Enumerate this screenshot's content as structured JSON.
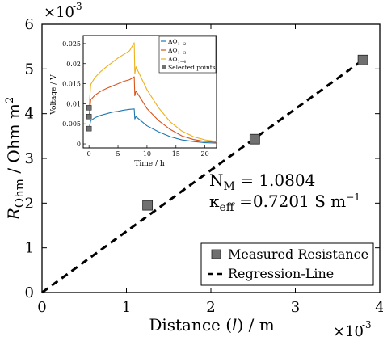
{
  "chart_data": [
    {
      "type": "scatter",
      "xlabel": "Distance (l) / m",
      "ylabel": "R_Ohm / Ohm m^2",
      "xlim": [
        0,
        0.004
      ],
      "ylim": [
        0,
        0.006
      ],
      "x_multiplier": "×10^-3",
      "y_multiplier": "×10^-3",
      "x_ticks": [
        "0",
        "1",
        "2",
        "3",
        "4"
      ],
      "y_ticks": [
        "0",
        "1",
        "2",
        "3",
        "4",
        "5",
        "6"
      ],
      "grid": false,
      "legend_position": "bottom-right",
      "series": [
        {
          "name": "Measured Resistance",
          "marker": "square",
          "color": "#707070",
          "points": [
            {
              "x": 0.00125,
              "y": 0.00195
            },
            {
              "x": 0.00252,
              "y": 0.00343
            },
            {
              "x": 0.0038,
              "y": 0.0052
            }
          ]
        },
        {
          "name": "Regression-Line",
          "style": "dashed",
          "color": "#000000",
          "points": [
            {
              "x": 0.0,
              "y": 0.0
            },
            {
              "x": 0.0038,
              "y": 0.0052
            }
          ]
        }
      ],
      "annotations": {
        "nm_text": "N_M = 1.0804",
        "kappa_text": "κ_eff =0.7201 S m^-1"
      }
    },
    {
      "type": "line",
      "xlabel": "Time / h",
      "ylabel": "Voltage / V",
      "xlim": [
        -1,
        22
      ],
      "ylim": [
        -0.001,
        0.027
      ],
      "x_ticks": [
        "0",
        "5",
        "10",
        "15",
        "20"
      ],
      "y_ticks": [
        "0",
        "0.005",
        "0.01",
        "0.015",
        "0.02",
        "0.025"
      ],
      "legend_position": "top-right",
      "series": [
        {
          "name": "ΔΦ_1-2",
          "color": "#1f77b4",
          "x": [
            0,
            0.3,
            1,
            2,
            3,
            4,
            5,
            6,
            7,
            7.8,
            7.9,
            8.1,
            10,
            12,
            14,
            16,
            18,
            20,
            22
          ],
          "y": [
            0.0038,
            0.0058,
            0.0065,
            0.0071,
            0.0075,
            0.0079,
            0.0081,
            0.0084,
            0.0086,
            0.0087,
            0.0062,
            0.0068,
            0.0045,
            0.003,
            0.0018,
            0.001,
            0.0006,
            0.0003,
            0.0002
          ]
        },
        {
          "name": "ΔΦ_1-3",
          "color": "#d95319",
          "x": [
            0,
            0.3,
            1,
            2,
            3,
            4,
            5,
            6,
            7,
            7.8,
            7.9,
            8.1,
            10,
            12,
            14,
            16,
            18,
            20,
            22
          ],
          "y": [
            0.0068,
            0.011,
            0.0121,
            0.0131,
            0.0138,
            0.0144,
            0.015,
            0.0156,
            0.016,
            0.0167,
            0.012,
            0.0132,
            0.0088,
            0.0058,
            0.0036,
            0.002,
            0.0011,
            0.0006,
            0.0004
          ]
        },
        {
          "name": "ΔΦ_1-4",
          "color": "#edb120",
          "x": [
            0,
            0.3,
            1,
            2,
            3,
            4,
            5,
            6,
            7,
            7.8,
            7.9,
            8.1,
            10,
            12,
            14,
            16,
            18,
            20,
            22
          ],
          "y": [
            0.009,
            0.0148,
            0.0165,
            0.018,
            0.0192,
            0.0203,
            0.0214,
            0.0223,
            0.0232,
            0.0252,
            0.0175,
            0.0192,
            0.0135,
            0.009,
            0.0055,
            0.0032,
            0.0018,
            0.001,
            0.0006
          ]
        },
        {
          "name": "Selected points",
          "marker": "square",
          "color": "#707070",
          "points": [
            {
              "x": 0,
              "y": 0.0038
            },
            {
              "x": 0,
              "y": 0.0068
            },
            {
              "x": 0,
              "y": 0.009
            }
          ]
        }
      ]
    }
  ]
}
